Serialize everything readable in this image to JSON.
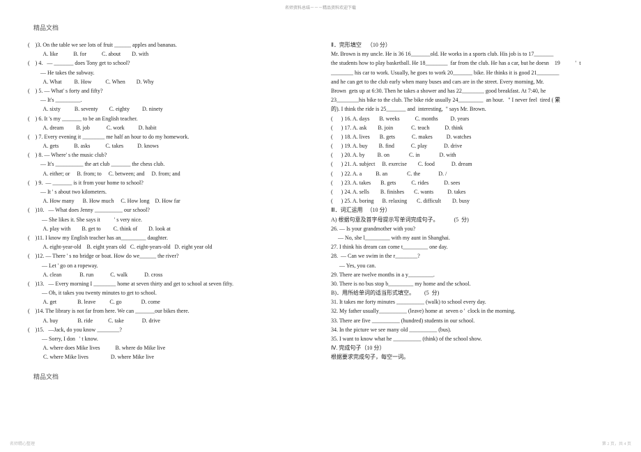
{
  "header_small": "名师资料总结－－－精品资料欢迎下载",
  "doc_label": "精品文档",
  "footer_left": "名师精心整理",
  "footer_right": "第 2 页，共 4 页",
  "left_lines": [
    "(    )3. On the table we see lots of fruit ______ apples and bananas.",
    "           A. like           B. for           C. about        D. with",
    "(    ) 4.   — _______ does Tony get to school?",
    "         — He takes the subway.",
    "           A. What         B. How          C. When        D. Why",
    "(    ) 5. — What' s forty and fifty?",
    "         — It's _________.",
    "           A. sixty          B. seventy        C. eighty         D. ninety",
    "(    ) 6. It 's my _______ to be an English teacher.",
    "           A. dream         B. job            C. work          D. habit",
    "(    ) 7. Every evening it ________ me half an hour to do my homework.",
    "           A. gets           B. asks           C. takes          D. knows",
    "(    ) 8. — Where' s the music club?",
    "         — It's __________ the art club _______ the chess club.",
    "           A. either; or     B. from; to     C. between; and     D. from; and",
    "(    ) 9.  — _______ is it from your home to school?",
    "         — It ' s about two kilometers.",
    "           A. How many      B. How much     C. How long    D. How far",
    "(    )10.   — What does Jenny __________ our school?",
    "          — She likes it. She says it          ' s very nice.",
    "           A. play with        B. get to         C. think of        D. look at",
    "(    )11. I know my English teacher has an_________ daughter.",
    "           A. eight-year-old    B. eight years old   C. eight-years-old   D. eight year old",
    "(    )12. — There ' s no bridge or boat. How do we______ the river?",
    "          — Let ' go on a ropeway.",
    "           A. clean             B. run            C. walk            D. cross",
    "(    )13.   — Every morning I ________ home at seven thirty and get to school at seven fifty.",
    "          — Oh, it takes you twenty minutes to get to school.",
    "           A. get               B. leave          C. go              D. come",
    "(    )14. The library is not far from here. We can _______our bikes there.",
    "           A. buy              B. ride           C. take             D. drive",
    "(    )15.   —Jack, do you know ________?",
    "          — Sorry, I don   ' t know.",
    "           A. where does Mike lives           B. where do Mike live",
    "           C. where Mike lives                D. where Mike live"
  ],
  "right_lines": [
    "Ⅱ．完形填空    （10 分）",
    "Mr. Brown is my uncle. He is 36 16_______old. He works in a sports club. His job is to 17_______",
    "the students how to play basketball. He 18________  far from the club. He has a car, but he doesn    19           '  t",
    "________ his car to work. Usually, he goes to work 20_______ bike. He thinks it is good 21________",
    "and he can get to the club early when many buses and cars are in the street. Every morning, Mr.",
    "Brown  gets up at 6:30. Then he takes a shower and has 22________ good breakfast. At 7:40, he",
    "23________his bike to the club. The bike ride usually 24_________  an hour.   \" I never feel  tired ( 累",
    "的). I think the ride is 25_______ and  interesting,  \" says Mr. Brown.",
    "(      ) 16. A. days       B. weeks           C. months         D. years",
    "(      ) 17. A. ask        B. join             C. teach           D. think",
    "(      ) 18. A. lives       B. gets            C. makes          D. watches",
    "(      ) 19. A. buy        B. find            C. play            D. drive",
    "(      ) 20. A. by         B. on              C. in              D. with",
    "(      ) 21. A. subject     B. exercise        C. food            D. dream",
    "(      ) 22. A. a          B. an              C. the             D. /",
    "(      ) 23. A. takes       B. gets           C. rides           D. sees",
    "(      ) 24. A. sells        B. finishes       C. wants          D. takes",
    "(      ) 25. A. boring      B. relaxing       C. difficult        D. busy",
    "Ⅲ．词汇运用   （10 分）",
    "A) 根据句意及首字母提示写单词完成句子。           (5  分)",
    "26. — Is your grandmother with you?",
    "     — No, she l_________ with my aunt in Shanghai.",
    "27. I think his dream can come t_________ one day.",
    "28.  — Can we swim in the r________?",
    "      — Yes, you can.",
    "29. There are twelve months in a y_________.",
    "30. There is no bus stop b_________ my home and the school.",
    "B)．用所给单词的适当形式填空。       (5  分)",
    "31. It takes me forty minutes __________ (walk) to school every day.",
    "32. My father usually__________ (leave) home at  seven o '  clock in the morning.",
    "33. There are five __________ (hundred) students in our school.",
    "34. In the picture we see many old __________ (bus).",
    "35. I want to know what he __________ (think) of the school show.",
    "Ⅳ. 完成句子（10 分）",
    "根据要求完成句子，每空一词。"
  ]
}
